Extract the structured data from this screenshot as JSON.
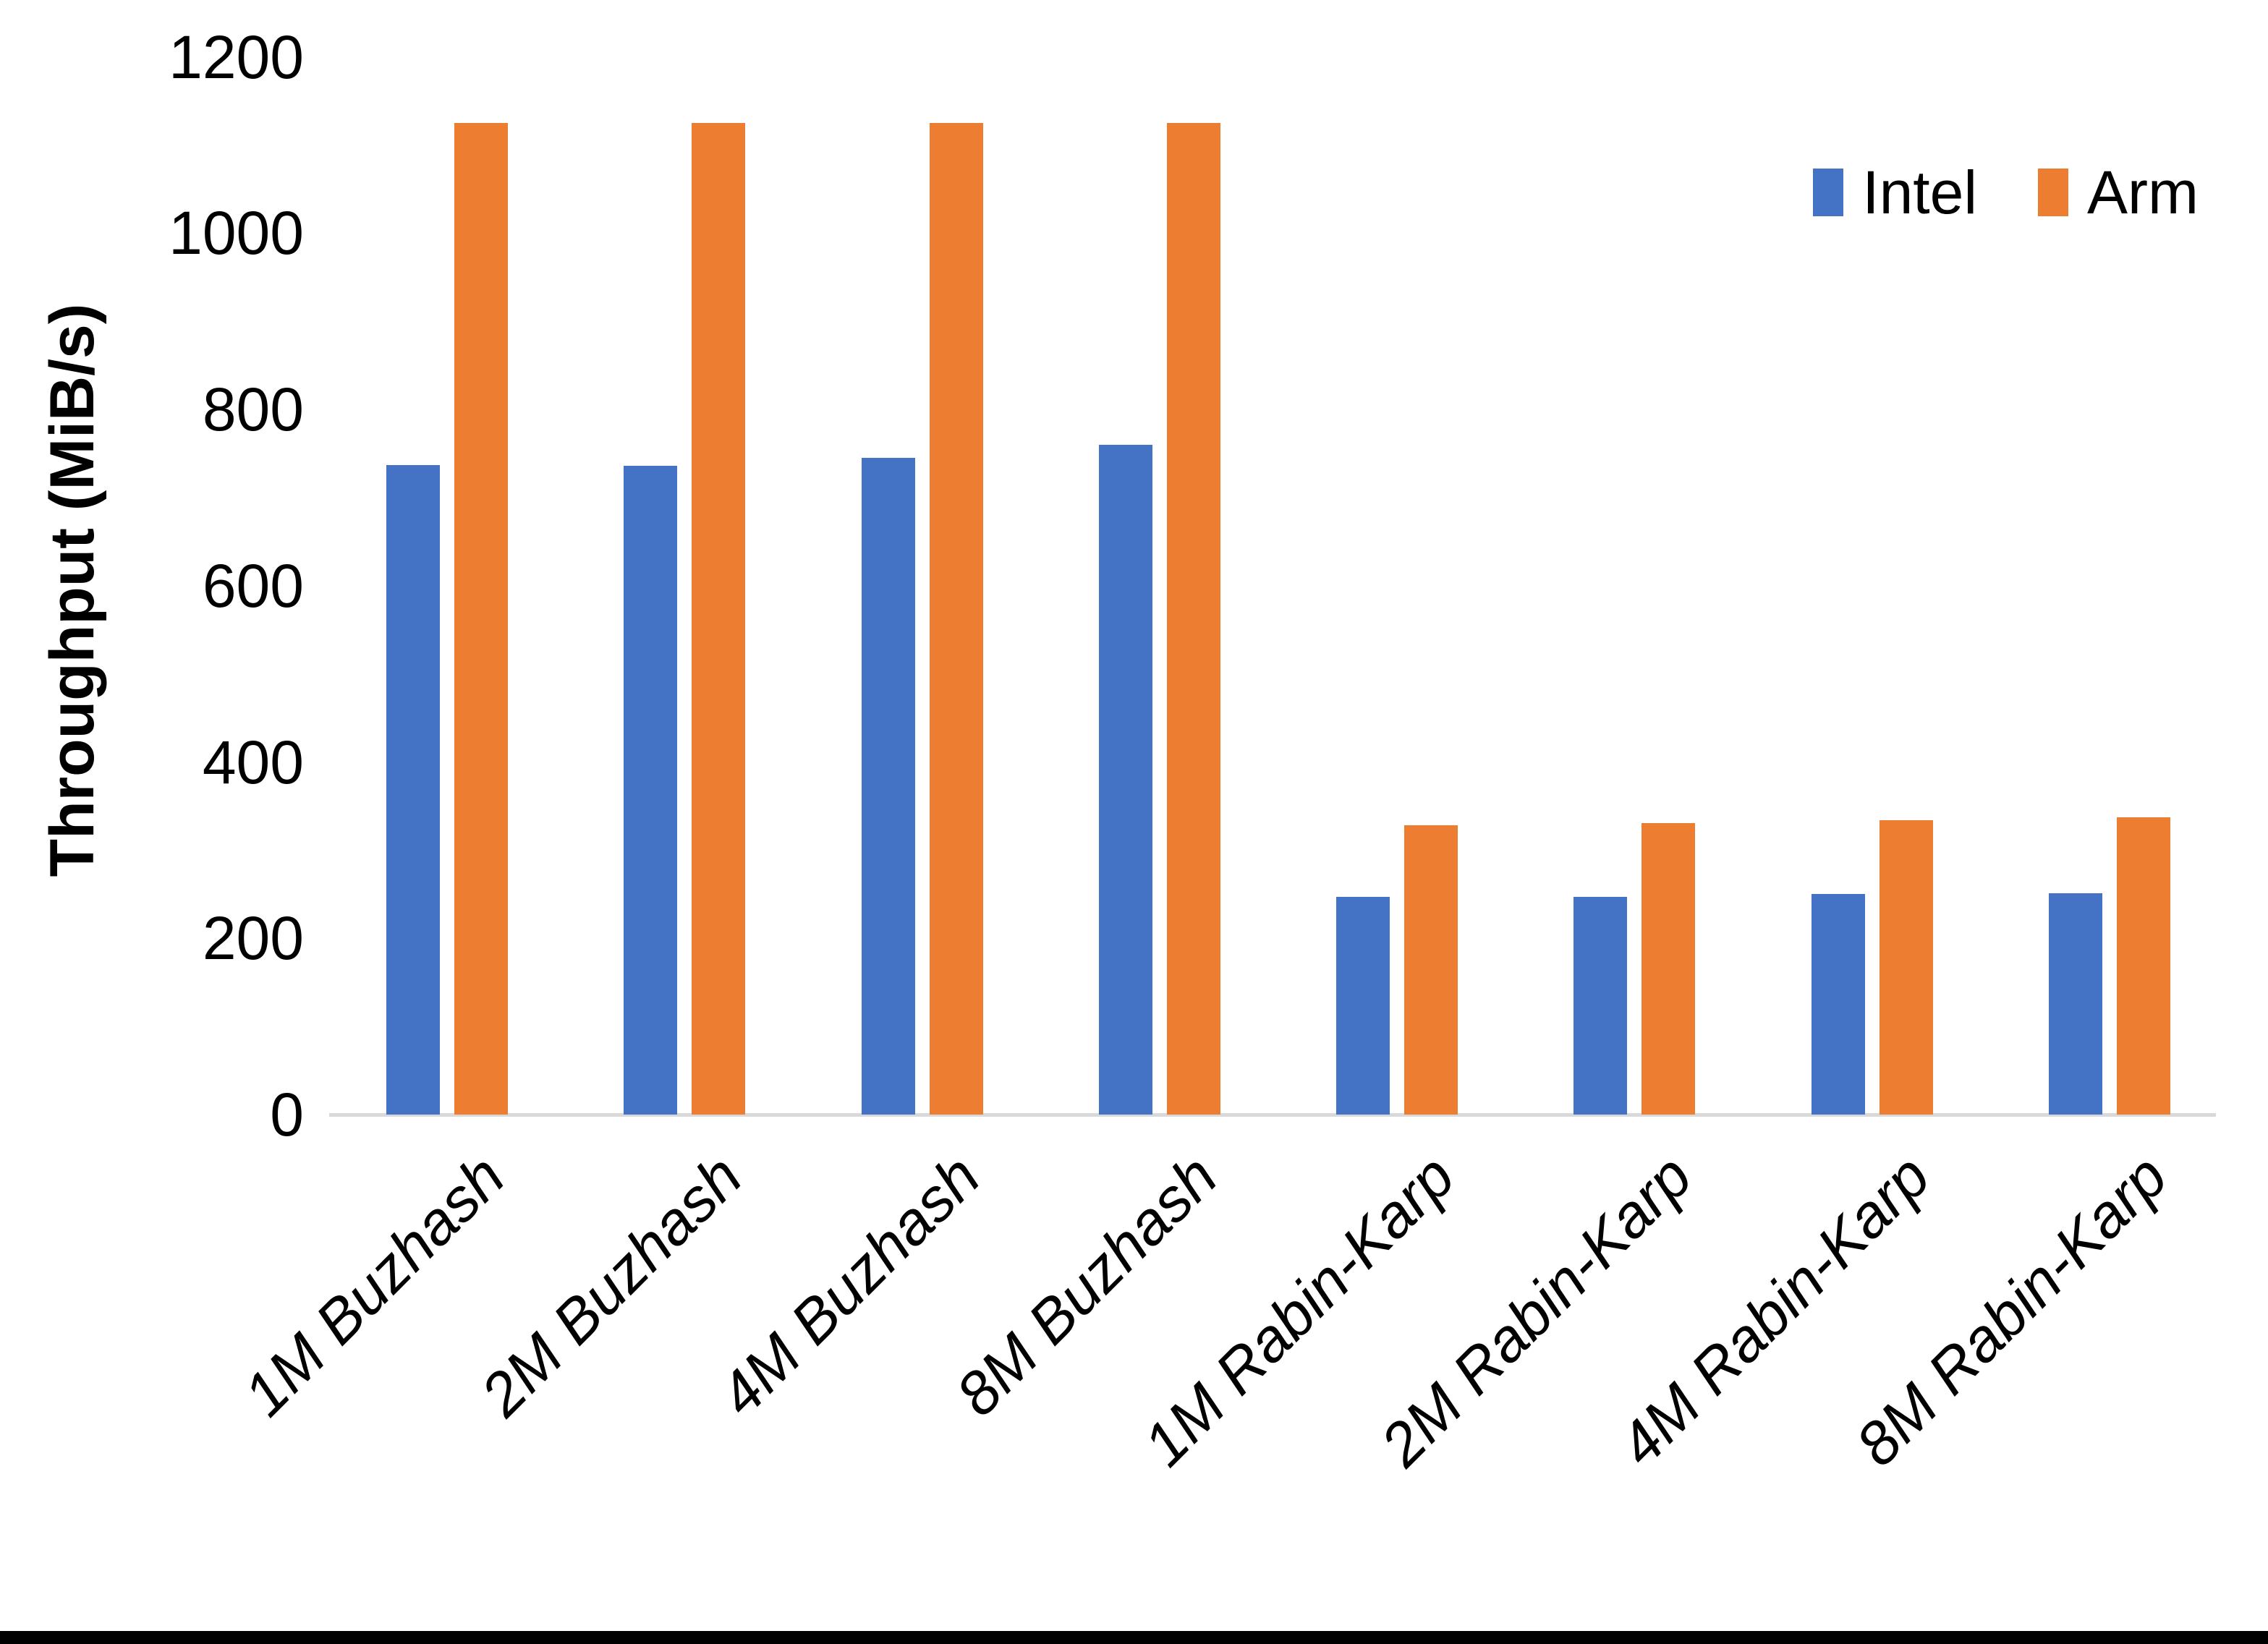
{
  "chart_data": {
    "type": "bar",
    "title": "",
    "xlabel": "",
    "ylabel": "Throughput (MiB/s)",
    "ylim": [
      0,
      1200
    ],
    "yticks": [
      0,
      200,
      400,
      600,
      800,
      1000,
      1200
    ],
    "grid": false,
    "legend_position": "top-right",
    "categories": [
      "1M Buzhash",
      "2M Buzhash",
      "4M Buzhash",
      "8M Buzhash",
      "1M Rabin-Karp",
      "2M Rabin-Karp",
      "4M Rabin-Karp",
      "8M Rabin-Karp"
    ],
    "series": [
      {
        "name": "Intel",
        "color": "#4472C4",
        "values": [
          737,
          736,
          745,
          760,
          247,
          247,
          250,
          251
        ]
      },
      {
        "name": "Arm",
        "color": "#ED7D31",
        "values": [
          1125,
          1125,
          1125,
          1125,
          328,
          331,
          334,
          337
        ]
      }
    ]
  },
  "colors": {
    "axis_line": "#d9d9d9",
    "text": "#000000",
    "background": "#ffffff",
    "bottom_border": "#000000"
  }
}
